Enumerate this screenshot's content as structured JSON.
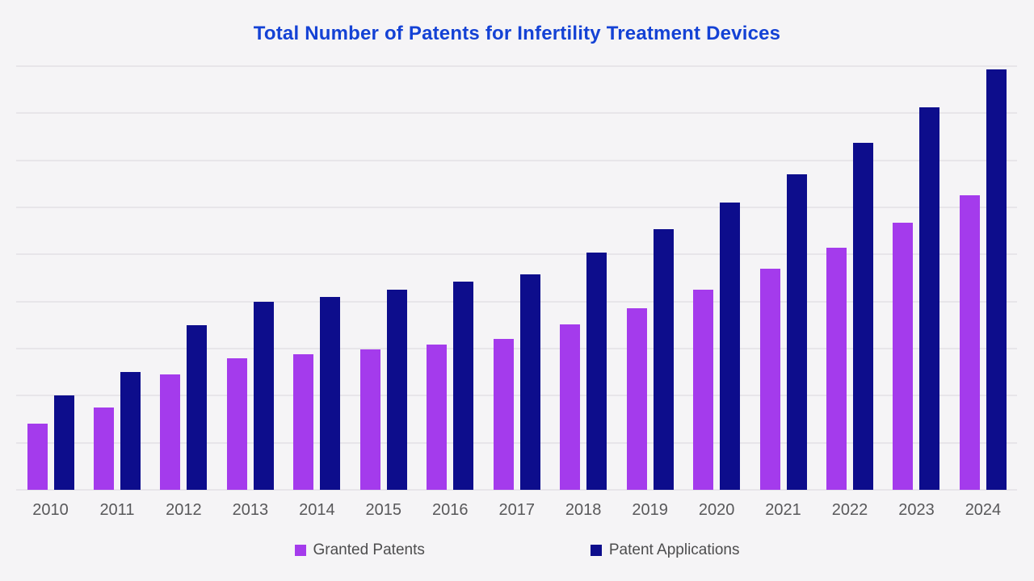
{
  "page": {
    "background": "#F5F4F6",
    "title_color": "#1442D5",
    "gridline_color": "#E7E5E9",
    "axis_label_color": "#58585A",
    "legend_text_color": "#4D4D4E"
  },
  "chart_data": {
    "type": "bar",
    "title": "Total Number of Patents for Infertility Treatment Devices",
    "categories": [
      "2010",
      "2011",
      "2012",
      "2013",
      "2014",
      "2015",
      "2016",
      "2017",
      "2018",
      "2019",
      "2020",
      "2021",
      "2022",
      "2023",
      "2024"
    ],
    "series": [
      {
        "name": "Granted Patents",
        "color": "#A43BEC",
        "values": [
          140,
          175,
          245,
          280,
          288,
          298,
          308,
          320,
          351,
          386,
          426,
          469,
          515,
          567,
          626
        ]
      },
      {
        "name": "Patent Applications",
        "color": "#0D0D8C",
        "values": [
          200,
          250,
          350,
          400,
          410,
          425,
          442,
          457,
          504,
          554,
          610,
          670,
          738,
          812,
          894
        ]
      }
    ],
    "xlabel": "",
    "ylabel": "",
    "ylim": [
      0,
      900
    ],
    "gridline_interval": 100,
    "grid": true,
    "y_axis_labels_visible": false,
    "legend_position": "bottom"
  }
}
